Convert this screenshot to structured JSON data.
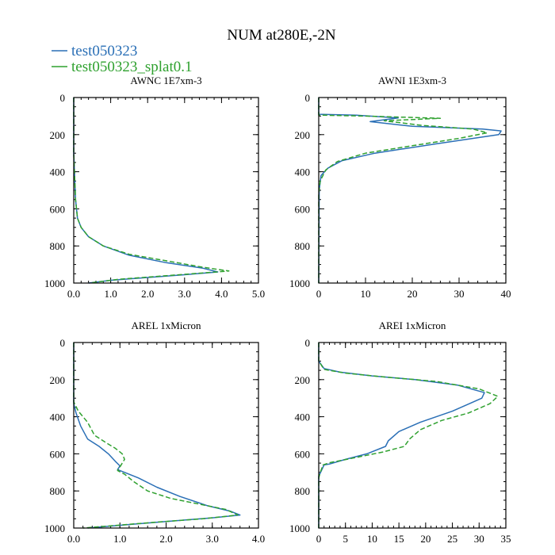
{
  "title": "NUM at280E,-2N",
  "colors": {
    "series1": "#2a6fb6",
    "series2": "#2fa12f",
    "axis": "#000000"
  },
  "legend": [
    {
      "name": "test050323",
      "color": "#2a6fb6",
      "style": "solid"
    },
    {
      "name": "test050323_splat0.1",
      "color": "#2fa12f",
      "style": "dashed"
    }
  ],
  "chart_data": [
    {
      "type": "line",
      "title": "AWNC  1E7xm-3",
      "xlim": [
        0,
        5
      ],
      "ylim": [
        1000,
        0
      ],
      "xticks": [
        0,
        1,
        2,
        3,
        4,
        5
      ],
      "xtick_labels": [
        "0.0",
        "1.0",
        "2.0",
        "3.0",
        "4.0",
        "5.0"
      ],
      "yticks": [
        0,
        200,
        400,
        600,
        800,
        1000
      ],
      "ytick_labels": [
        "0",
        "200",
        "400",
        "600",
        "800",
        "1000"
      ],
      "series": [
        {
          "name": "test050323",
          "points": [
            [
              0,
              0
            ],
            [
              0,
              300
            ],
            [
              0.02,
              400
            ],
            [
              0.05,
              550
            ],
            [
              0.1,
              650
            ],
            [
              0.2,
              700
            ],
            [
              0.4,
              750
            ],
            [
              0.8,
              800
            ],
            [
              1.5,
              850
            ],
            [
              2.5,
              890
            ],
            [
              3.5,
              920
            ],
            [
              3.9,
              940
            ],
            [
              3.0,
              955
            ],
            [
              2.0,
              970
            ],
            [
              1.0,
              985
            ],
            [
              0.4,
              1000
            ]
          ]
        },
        {
          "name": "test050323_splat0.1",
          "points": [
            [
              0,
              0
            ],
            [
              0,
              300
            ],
            [
              0.02,
              400
            ],
            [
              0.05,
              550
            ],
            [
              0.1,
              650
            ],
            [
              0.2,
              700
            ],
            [
              0.4,
              750
            ],
            [
              0.8,
              800
            ],
            [
              1.5,
              845
            ],
            [
              2.5,
              880
            ],
            [
              3.5,
              915
            ],
            [
              4.2,
              935
            ],
            [
              3.2,
              950
            ],
            [
              2.2,
              965
            ],
            [
              1.2,
              980
            ],
            [
              0.5,
              998
            ]
          ]
        }
      ]
    },
    {
      "type": "line",
      "title": "AWNI  1E3xm-3",
      "xlim": [
        0,
        40
      ],
      "ylim": [
        1000,
        0
      ],
      "xticks": [
        0,
        10,
        20,
        30,
        40
      ],
      "xtick_labels": [
        "0",
        "10",
        "20",
        "30",
        "40"
      ],
      "yticks": [
        0,
        200,
        400,
        600,
        800,
        1000
      ],
      "ytick_labels": [
        "0",
        "200",
        "400",
        "600",
        "800",
        "1000"
      ],
      "series": [
        {
          "name": "test050323",
          "points": [
            [
              0,
              0
            ],
            [
              0,
              90
            ],
            [
              8,
              95
            ],
            [
              17,
              110
            ],
            [
              11,
              130
            ],
            [
              20,
              155
            ],
            [
              35,
              170
            ],
            [
              39,
              180
            ],
            [
              38.5,
              200
            ],
            [
              25,
              250
            ],
            [
              12,
              300
            ],
            [
              5,
              340
            ],
            [
              2,
              380
            ],
            [
              0.5,
              420
            ],
            [
              0.1,
              500
            ],
            [
              0,
              1000
            ]
          ]
        },
        {
          "name": "test050323_splat0.1",
          "points": [
            [
              0,
              0
            ],
            [
              0,
              95
            ],
            [
              10,
              100
            ],
            [
              26,
              112
            ],
            [
              14,
              125
            ],
            [
              22,
              150
            ],
            [
              33,
              170
            ],
            [
              36,
              190
            ],
            [
              30,
              220
            ],
            [
              20,
              260
            ],
            [
              10,
              300
            ],
            [
              4,
              345
            ],
            [
              1.5,
              390
            ],
            [
              0.3,
              450
            ],
            [
              0,
              520
            ],
            [
              0,
              1000
            ]
          ]
        }
      ]
    },
    {
      "type": "line",
      "title": "AREL  1xMicron",
      "xlim": [
        0,
        4
      ],
      "ylim": [
        1000,
        0
      ],
      "xticks": [
        0,
        1,
        2,
        3,
        4
      ],
      "xtick_labels": [
        "0.0",
        "1.0",
        "2.0",
        "3.0",
        "4.0"
      ],
      "yticks": [
        0,
        200,
        400,
        600,
        800,
        1000
      ],
      "ytick_labels": [
        "0",
        "200",
        "400",
        "600",
        "800",
        "1000"
      ],
      "series": [
        {
          "name": "test050323",
          "points": [
            [
              0,
              0
            ],
            [
              0,
              330
            ],
            [
              0.05,
              380
            ],
            [
              0.15,
              450
            ],
            [
              0.3,
              520
            ],
            [
              0.55,
              560
            ],
            [
              0.75,
              600
            ],
            [
              0.9,
              640
            ],
            [
              1.0,
              665
            ],
            [
              0.95,
              685
            ],
            [
              1.1,
              700
            ],
            [
              1.4,
              730
            ],
            [
              1.8,
              780
            ],
            [
              2.3,
              830
            ],
            [
              2.9,
              880
            ],
            [
              3.4,
              910
            ],
            [
              3.6,
              930
            ],
            [
              3.0,
              945
            ],
            [
              2.0,
              965
            ],
            [
              1.0,
              985
            ],
            [
              0.3,
              1000
            ]
          ]
        },
        {
          "name": "test050323_splat0.1",
          "points": [
            [
              0,
              0
            ],
            [
              0,
              320
            ],
            [
              0.1,
              370
            ],
            [
              0.3,
              430
            ],
            [
              0.45,
              500
            ],
            [
              0.7,
              540
            ],
            [
              0.9,
              570
            ],
            [
              1.05,
              600
            ],
            [
              1.1,
              630
            ],
            [
              1.0,
              670
            ],
            [
              0.95,
              690
            ],
            [
              1.1,
              710
            ],
            [
              1.3,
              750
            ],
            [
              1.6,
              800
            ],
            [
              2.1,
              840
            ],
            [
              2.8,
              875
            ],
            [
              3.3,
              900
            ],
            [
              3.55,
              930
            ],
            [
              2.8,
              950
            ],
            [
              1.8,
              968
            ],
            [
              0.8,
              988
            ],
            [
              0.2,
              1000
            ]
          ]
        }
      ]
    },
    {
      "type": "line",
      "title": "AREI  1xMicron",
      "xlim": [
        0,
        35
      ],
      "ylim": [
        1000,
        0
      ],
      "xticks": [
        0,
        5,
        10,
        15,
        20,
        25,
        30,
        35
      ],
      "xtick_labels": [
        "0",
        "5",
        "10",
        "15",
        "20",
        "25",
        "30",
        "35"
      ],
      "yticks": [
        0,
        200,
        400,
        600,
        800,
        1000
      ],
      "ytick_labels": [
        "0",
        "200",
        "400",
        "600",
        "800",
        "1000"
      ],
      "series": [
        {
          "name": "test050323",
          "points": [
            [
              0,
              0
            ],
            [
              0,
              100
            ],
            [
              1,
              140
            ],
            [
              4,
              160
            ],
            [
              10,
              180
            ],
            [
              18,
              200
            ],
            [
              26,
              230
            ],
            [
              31,
              270
            ],
            [
              30.5,
              300
            ],
            [
              25,
              370
            ],
            [
              19,
              430
            ],
            [
              15,
              480
            ],
            [
              13,
              530
            ],
            [
              12.5,
              560
            ],
            [
              9,
              600
            ],
            [
              5,
              630
            ],
            [
              2,
              655
            ],
            [
              1,
              660
            ],
            [
              0.5,
              690
            ],
            [
              0,
              720
            ],
            [
              0,
              1000
            ]
          ]
        },
        {
          "name": "test050323_splat0.1",
          "points": [
            [
              0,
              0
            ],
            [
              0,
              100
            ],
            [
              1,
              145
            ],
            [
              5,
              165
            ],
            [
              12,
              185
            ],
            [
              22,
              210
            ],
            [
              30,
              250
            ],
            [
              33.5,
              290
            ],
            [
              32,
              330
            ],
            [
              28,
              380
            ],
            [
              23,
              420
            ],
            [
              19,
              470
            ],
            [
              17,
              520
            ],
            [
              16,
              560
            ],
            [
              12,
              590
            ],
            [
              6,
              625
            ],
            [
              2,
              648
            ],
            [
              0.8,
              660
            ],
            [
              0.3,
              700
            ],
            [
              0,
              730
            ],
            [
              0,
              1000
            ]
          ]
        }
      ]
    }
  ]
}
